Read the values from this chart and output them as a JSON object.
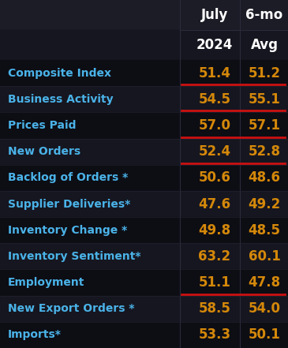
{
  "bg_color": "#111118",
  "header_bg_top": "#1c1c26",
  "header_bg_bot": "#161620",
  "row_bg_dark": "#0d0d14",
  "row_bg_light": "#161620",
  "label_color": "#4ab3e8",
  "value_color": "#d4880a",
  "header_color": "#ffffff",
  "underline_color": "#cc1111",
  "col2_header_line1": "July",
  "col2_header_line2": "2024",
  "col3_header_line1": "6-mo",
  "col3_header_line2": "Avg",
  "rows": [
    {
      "label": "Composite Index",
      "july": "51.4",
      "avg": "51.2",
      "underline_bottom": true
    },
    {
      "label": "Business Activity",
      "july": "54.5",
      "avg": "55.1",
      "underline_bottom": true
    },
    {
      "label": "Prices Paid",
      "july": "57.0",
      "avg": "57.1",
      "underline_bottom": true
    },
    {
      "label": "New Orders",
      "july": "52.4",
      "avg": "52.8",
      "underline_bottom": true
    },
    {
      "label": "Backlog of Orders *",
      "july": "50.6",
      "avg": "48.6",
      "underline_bottom": false
    },
    {
      "label": "Supplier Deliveries*",
      "july": "47.6",
      "avg": "49.2",
      "underline_bottom": false
    },
    {
      "label": "Inventory Change *",
      "july": "49.8",
      "avg": "48.5",
      "underline_bottom": false
    },
    {
      "label": "Inventory Sentiment*",
      "july": "63.2",
      "avg": "60.1",
      "underline_bottom": false
    },
    {
      "label": "Employment",
      "july": "51.1",
      "avg": "47.8",
      "underline_bottom": true
    },
    {
      "label": "New Export Orders *",
      "july": "58.5",
      "avg": "54.0",
      "underline_bottom": false
    },
    {
      "label": "Imports*",
      "july": "53.3",
      "avg": "50.1",
      "underline_bottom": false
    }
  ]
}
